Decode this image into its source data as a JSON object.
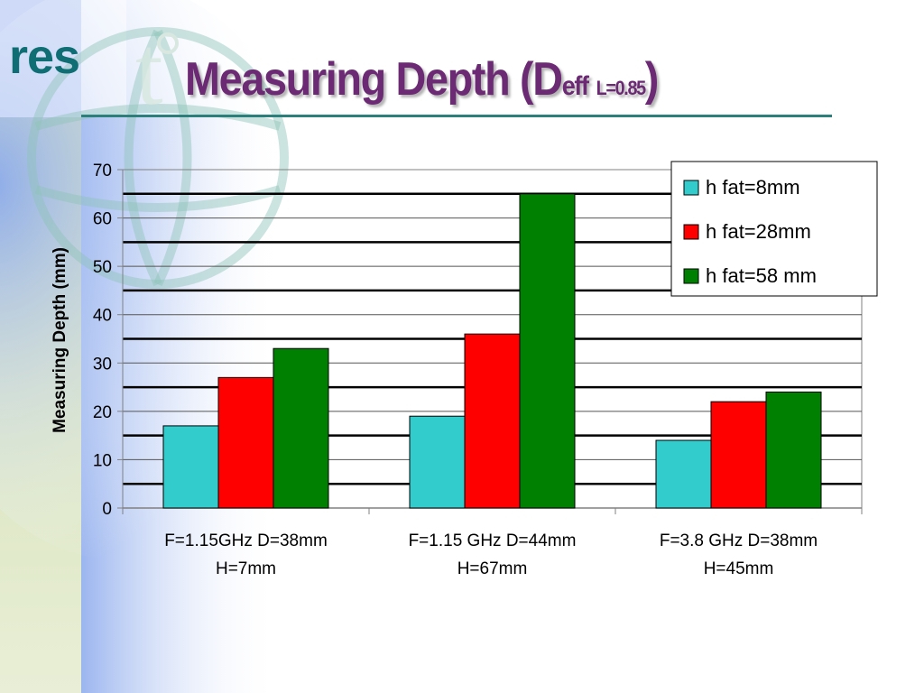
{
  "slide": {
    "logo": "res",
    "title_main": "Measuring Depth (D",
    "title_sub1": "eff",
    "title_sub2": "L=0.85",
    "title_end": ")"
  },
  "colors": {
    "title": "#6b2a73",
    "logo": "#0e6e73",
    "rule": "#2c7f7a",
    "series": [
      "#33cccc",
      "#ff0000",
      "#008000"
    ]
  },
  "chart_data": {
    "type": "bar",
    "title": "",
    "xlabel": "",
    "ylabel": "Measuring Depth (mm)",
    "ylim": [
      0,
      70
    ],
    "yticks": [
      0,
      10,
      20,
      30,
      40,
      50,
      60,
      70
    ],
    "categories": [
      [
        "F=1.15GHz D=38mm",
        "H=7mm"
      ],
      [
        "F=1.15 GHz D=44mm",
        "H=67mm"
      ],
      [
        "F=3.8 GHz D=38mm",
        "H=45mm"
      ]
    ],
    "series": [
      {
        "name": "h fat=8mm",
        "values": [
          17,
          19,
          14
        ]
      },
      {
        "name": "h fat=28mm",
        "values": [
          27,
          36,
          22
        ]
      },
      {
        "name": "h fat=58 mm",
        "values": [
          33,
          65,
          24
        ]
      }
    ],
    "grid": true,
    "legend_position": "top-right"
  }
}
